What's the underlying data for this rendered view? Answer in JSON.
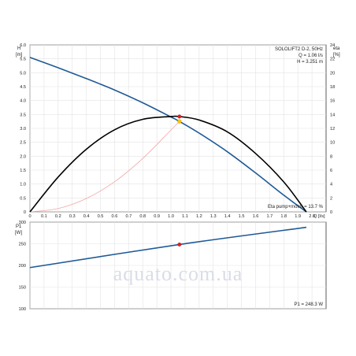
{
  "watermark": "aquato.com.ua",
  "chart_data": [
    {
      "type": "line",
      "title": "SOLOLIFT2 D-2, 50Hz",
      "annotations": [
        "Q = 1.06 l/s",
        "H = 3.251 m",
        "Eta pump+motor = 13.7 %"
      ],
      "xlabel": "Q [l/s]",
      "xlabel_unit": "Q [l/s]",
      "ylabel_left": "H",
      "ylabel_left_unit": "[m]",
      "ylabel_right": "eta",
      "ylabel_right_unit": "[%]",
      "xlim": [
        0,
        2.1
      ],
      "ylim_left": [
        0,
        6.0
      ],
      "ylim_right": [
        0,
        24
      ],
      "x_ticks": [
        "0",
        "0.1",
        "0.2",
        "0.3",
        "0.4",
        "0.5",
        "0.6",
        "0.7",
        "0.8",
        "0.9",
        "1.0",
        "1.1",
        "1.2",
        "1.3",
        "1.4",
        "1.5",
        "1.6",
        "1.7",
        "1.8",
        "1.9",
        "2.0"
      ],
      "y_ticks_left": [
        "0",
        "0.5",
        "1.0",
        "1.5",
        "2.0",
        "2.5",
        "3.0",
        "3.5",
        "4.0",
        "4.5",
        "5.0",
        "5.5",
        "6.0"
      ],
      "y_ticks_right": [
        "0",
        "2",
        "4",
        "6",
        "8",
        "10",
        "12",
        "14",
        "16",
        "18",
        "20",
        "22",
        "24"
      ],
      "grid": true,
      "series": [
        {
          "axis": "left",
          "color": "#1e5a96",
          "x": [
            0,
            0.2,
            0.4,
            0.6,
            0.8,
            1.0,
            1.06,
            1.2,
            1.4,
            1.6,
            1.8,
            1.96
          ],
          "y": [
            5.55,
            5.18,
            4.79,
            4.38,
            3.92,
            3.41,
            3.25,
            2.83,
            2.16,
            1.4,
            0.6,
            0.0
          ]
        },
        {
          "axis": "right",
          "color": "#000000",
          "x": [
            0,
            0.2,
            0.4,
            0.6,
            0.8,
            1.0,
            1.06,
            1.2,
            1.4,
            1.6,
            1.8,
            1.96
          ],
          "y": [
            0.0,
            5.0,
            9.0,
            11.8,
            13.3,
            13.7,
            13.7,
            13.2,
            11.5,
            8.4,
            4.3,
            0.0
          ]
        },
        {
          "axis": "left",
          "color": "#f2a6a6",
          "x": [
            0,
            0.2,
            0.4,
            0.6,
            0.8,
            1.0,
            1.06
          ],
          "y": [
            0.0,
            0.12,
            0.48,
            1.08,
            1.92,
            2.94,
            3.25
          ]
        }
      ],
      "duty_point": {
        "x": 1.06,
        "y": 3.251
      }
    },
    {
      "type": "line",
      "ylabel": "P1",
      "ylabel_unit": "[W]",
      "annotation": "P1 = 248.3 W",
      "xlim": [
        0,
        2.1
      ],
      "ylim": [
        100,
        300
      ],
      "y_ticks": [
        "300",
        "250",
        "200",
        "150",
        "100"
      ],
      "grid": true,
      "series": [
        {
          "color": "#1e5a96",
          "x": [
            0,
            1.06,
            1.96
          ],
          "y": [
            195,
            248.3,
            288
          ]
        }
      ],
      "duty_point": {
        "x": 1.06,
        "y": 248.3
      }
    }
  ]
}
